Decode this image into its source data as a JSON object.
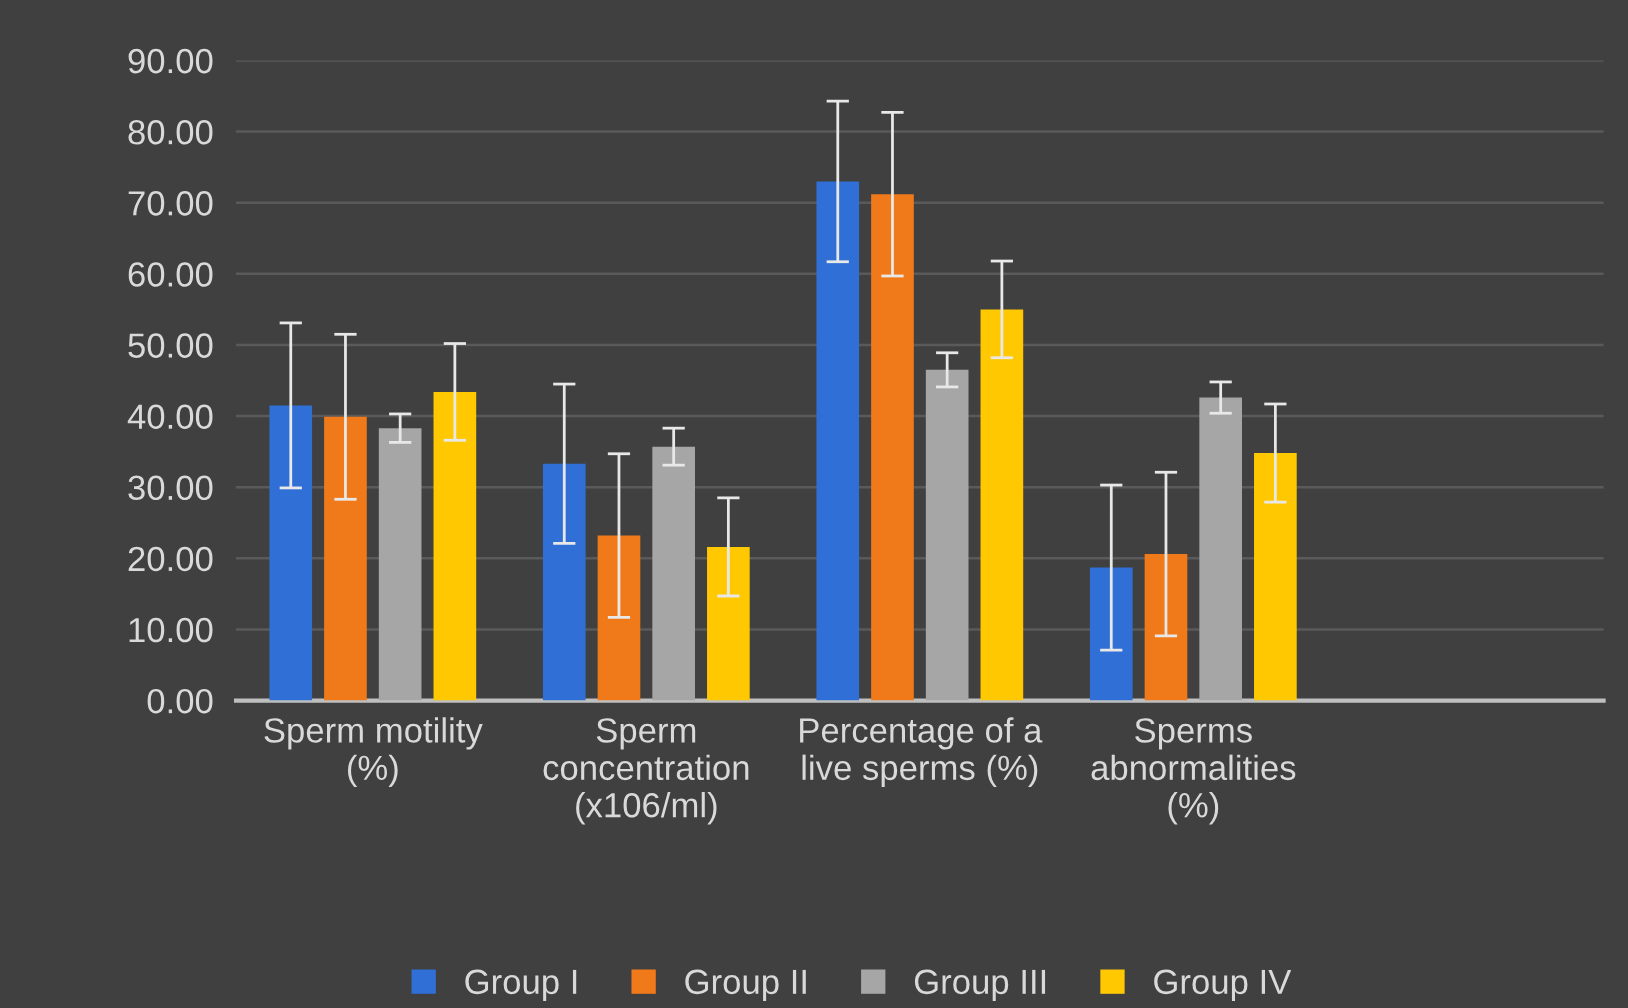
{
  "chart_data": {
    "type": "bar",
    "categories": [
      "Sperm motility\n(%)",
      "Sperm\nconcentration\n(x106/ml)",
      "Percentage of a\nlive sperms (%)",
      "Sperms\nabnormalities\n(%)",
      null
    ],
    "series": [
      {
        "name": "Group I",
        "color": "#2f6fd6",
        "values": [
          41.5,
          33.3,
          73.0,
          18.7,
          null
        ],
        "errors": [
          11.6,
          11.2,
          11.3,
          11.6,
          null
        ]
      },
      {
        "name": "Group II",
        "color": "#f07a1a",
        "values": [
          39.9,
          23.2,
          71.2,
          20.6,
          null
        ],
        "errors": [
          11.6,
          11.5,
          11.5,
          11.5,
          null
        ]
      },
      {
        "name": "Group III",
        "color": "#a6a6a6",
        "values": [
          38.3,
          35.7,
          46.5,
          42.6,
          null
        ],
        "errors": [
          2.0,
          2.6,
          2.4,
          2.2,
          null
        ]
      },
      {
        "name": "Group IV",
        "color": "#ffc800",
        "values": [
          43.4,
          21.6,
          55.0,
          34.8,
          null
        ],
        "errors": [
          6.8,
          6.9,
          6.8,
          6.9,
          null
        ]
      }
    ],
    "ylim": [
      0,
      90
    ],
    "yticks": [
      {
        "value": 0,
        "label": "0.00"
      },
      {
        "value": 10,
        "label": "10.00"
      },
      {
        "value": 20,
        "label": "20.00"
      },
      {
        "value": 30,
        "label": "30.00"
      },
      {
        "value": 40,
        "label": "40.00"
      },
      {
        "value": 50,
        "label": "50.00"
      },
      {
        "value": 60,
        "label": "60.00"
      },
      {
        "value": 70,
        "label": "70.00"
      },
      {
        "value": 80,
        "label": "80.00"
      },
      {
        "value": 90,
        "label": "90.00"
      }
    ],
    "grid": "y",
    "legend": "bottom"
  }
}
